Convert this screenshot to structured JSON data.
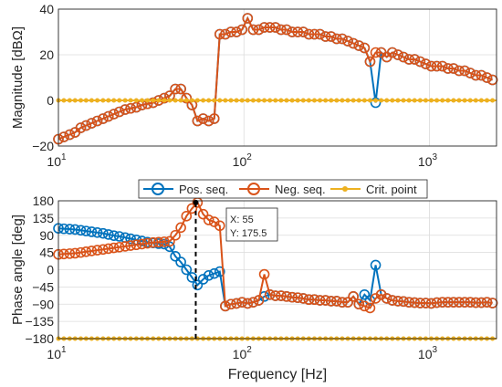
{
  "chart_data": [
    {
      "type": "line",
      "xscale": "log",
      "xlim": [
        10,
        2300
      ],
      "ylim": [
        -20,
        40
      ],
      "ylabel": "Magnitude [dBΩ]",
      "xlabel": "",
      "grid": true,
      "y_ticks": [
        "40",
        "20",
        "0",
        "−20"
      ],
      "x_ticks": [
        {
          "base": "10",
          "exp": "1"
        },
        {
          "base": "10",
          "exp": "2"
        },
        {
          "base": "10",
          "exp": "3"
        }
      ],
      "x": [
        10,
        10.7,
        11.5,
        12.3,
        13.2,
        14.1,
        15.1,
        16.2,
        17.4,
        18.6,
        19.9,
        21.3,
        22.9,
        24.5,
        26.3,
        28.2,
        30.2,
        32.4,
        34.7,
        37.2,
        39.8,
        42.7,
        45.7,
        49,
        52.5,
        56.2,
        60.3,
        64.6,
        69.2,
        74.1,
        79.4,
        85.1,
        91.2,
        97.7,
        104.7,
        112.2,
        120.2,
        128.8,
        138,
        147.9,
        158.5,
        169.8,
        182,
        195,
        208.9,
        223.9,
        239.9,
        257,
        275.4,
        295.1,
        316.2,
        338.8,
        363.1,
        389,
        416.9,
        446.7,
        478.6,
        512.9,
        549.5,
        588.8,
        631,
        676.1,
        724.4,
        776.2,
        831.8,
        891.3,
        955,
        1023,
        1096,
        1175,
        1259,
        1349,
        1445,
        1549,
        1660,
        1778,
        1905,
        2042,
        2188
      ],
      "series": [
        {
          "name": "Pos. seq.",
          "color": "#0072BD",
          "values": [
            -17,
            -16,
            -15,
            -14,
            -12,
            -11,
            -10,
            -9,
            -8,
            -7,
            -6,
            -5,
            -4,
            -3.5,
            -3,
            -2,
            -1.5,
            -1,
            0,
            1,
            2,
            5,
            5,
            1,
            -2,
            -9,
            -8,
            -9,
            -8,
            29,
            29,
            30,
            30,
            31,
            36,
            31,
            31,
            32,
            32,
            32,
            31,
            31,
            30,
            30,
            30,
            29,
            29,
            29,
            28,
            28,
            27,
            27,
            26,
            25,
            24,
            23,
            17,
            -1,
            21,
            19,
            21,
            20,
            19,
            18,
            18,
            17,
            16,
            15,
            15,
            15,
            14,
            14,
            13,
            13,
            12,
            11,
            11,
            10,
            9
          ]
        },
        {
          "name": "Neg. seq.",
          "color": "#D95319",
          "values": [
            -17,
            -16,
            -15,
            -14,
            -12,
            -11,
            -10,
            -9,
            -8,
            -7,
            -6,
            -5,
            -4,
            -3.5,
            -3,
            -2,
            -1.5,
            -1,
            0,
            1,
            2,
            5,
            5,
            1,
            -2,
            -9,
            -8,
            -9,
            -8,
            29,
            29,
            30,
            30,
            31,
            36,
            31,
            31,
            32,
            32,
            32,
            31,
            31,
            30,
            30,
            30,
            29,
            29,
            29,
            28,
            28,
            27,
            27,
            26,
            25,
            24,
            23,
            17,
            21,
            21,
            19,
            21,
            20,
            19,
            18,
            18,
            17,
            16,
            15,
            15,
            15,
            14,
            14,
            13,
            13,
            12,
            11,
            11,
            10,
            9
          ]
        },
        {
          "name": "Crit. point",
          "color": "#EDB120",
          "constant": 0
        }
      ]
    },
    {
      "type": "line",
      "xscale": "log",
      "xlim": [
        10,
        2300
      ],
      "ylim": [
        -180,
        180
      ],
      "ylabel": "Phase angle [deg]",
      "xlabel": "Frequency [Hz]",
      "grid": true,
      "y_ticks": [
        "180",
        "135",
        "90",
        "45",
        "0",
        "−45",
        "−90",
        "−135",
        "−180"
      ],
      "x_ticks": [
        {
          "base": "10",
          "exp": "1"
        },
        {
          "base": "10",
          "exp": "2"
        },
        {
          "base": "10",
          "exp": "3"
        }
      ],
      "x": [
        10,
        10.7,
        11.5,
        12.3,
        13.2,
        14.1,
        15.1,
        16.2,
        17.4,
        18.6,
        19.9,
        21.3,
        22.9,
        24.5,
        26.3,
        28.2,
        30.2,
        32.4,
        34.7,
        37.2,
        39.8,
        42.7,
        45.7,
        49,
        52.5,
        56.2,
        60.3,
        64.6,
        69.2,
        74.1,
        79.4,
        85.1,
        91.2,
        97.7,
        104.7,
        112.2,
        120.2,
        128.8,
        138,
        147.9,
        158.5,
        169.8,
        182,
        195,
        208.9,
        223.9,
        239.9,
        257,
        275.4,
        295.1,
        316.2,
        338.8,
        363.1,
        389,
        416.9,
        446.7,
        478.6,
        512.9,
        549.5,
        588.8,
        631,
        676.1,
        724.4,
        776.2,
        831.8,
        891.3,
        955,
        1023,
        1096,
        1175,
        1259,
        1349,
        1445,
        1549,
        1660,
        1778,
        1905,
        2042,
        2188
      ],
      "series": [
        {
          "name": "Pos. seq.",
          "color": "#0072BD",
          "values": [
            108,
            107,
            106,
            105,
            103,
            101,
            99,
            97,
            95,
            92,
            89,
            87,
            84,
            81,
            78,
            75,
            72,
            70,
            68,
            67,
            60,
            35,
            20,
            0,
            -20,
            -40,
            -25,
            -15,
            -10,
            -5,
            -95,
            -90,
            -88,
            -85,
            -88,
            -85,
            -80,
            -70,
            -65,
            -68,
            -68,
            -70,
            -72,
            -73,
            -75,
            -78,
            -78,
            -80,
            -80,
            -82,
            -82,
            -85,
            -85,
            -70,
            -90,
            -65,
            -80,
            12,
            -65,
            -75,
            -80,
            -82,
            -83,
            -85,
            -86,
            -87,
            -87,
            -88,
            -86,
            -85,
            -85,
            -85,
            -85,
            -85,
            -85,
            -86,
            -86,
            -85,
            -87
          ]
        },
        {
          "name": "Neg. seq.",
          "color": "#D95319",
          "values": [
            40,
            41,
            42,
            43,
            45,
            47,
            49,
            51,
            53,
            55,
            57,
            59,
            61,
            63,
            65,
            67,
            69,
            71,
            72,
            73,
            74,
            90,
            110,
            140,
            160,
            175.5,
            145,
            130,
            125,
            115,
            -95,
            -90,
            -88,
            -85,
            -88,
            -85,
            -80,
            -12,
            -65,
            -68,
            -68,
            -70,
            -72,
            -73,
            -75,
            -78,
            -78,
            -80,
            -80,
            -82,
            -82,
            -85,
            -85,
            -70,
            -90,
            -95,
            -100,
            -75,
            -65,
            -75,
            -80,
            -82,
            -83,
            -85,
            -86,
            -87,
            -87,
            -88,
            -86,
            -85,
            -85,
            -85,
            -85,
            -85,
            -85,
            -86,
            -86,
            -85,
            -87
          ]
        },
        {
          "name": "Crit. point",
          "color": "#EDB120",
          "constant": -180
        }
      ],
      "annotation": {
        "x_label": "X: 55",
        "y_label": "Y: 175.5",
        "x": 55,
        "y": 175.5
      }
    }
  ]
}
